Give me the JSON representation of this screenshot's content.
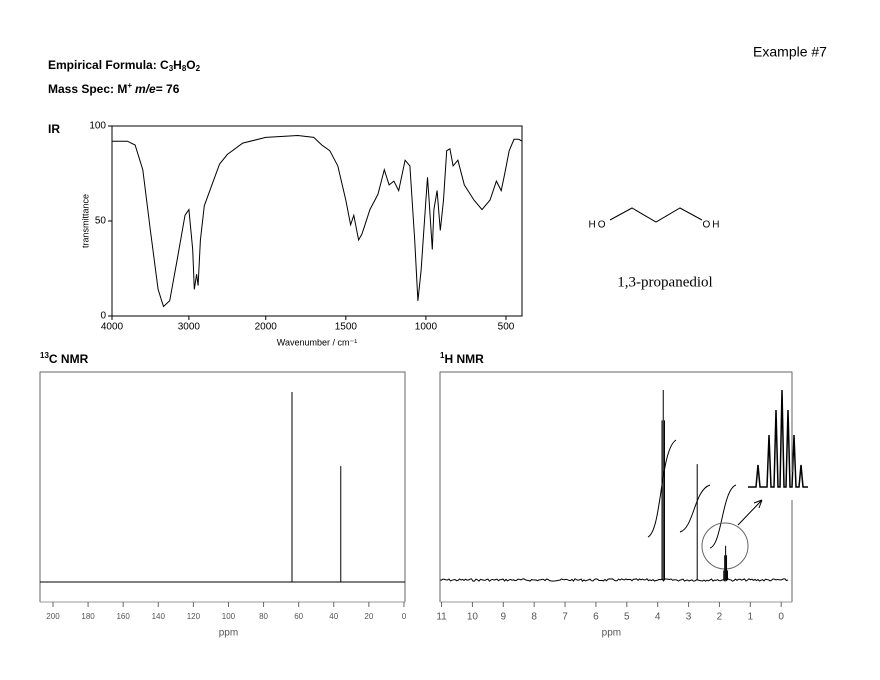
{
  "header": {
    "example": "Example #7",
    "formula_label": "Empirical Formula: ",
    "formula_parts": [
      {
        "text": "C",
        "sub": "3"
      },
      {
        "text": "H",
        "sub": "8"
      },
      {
        "text": "O",
        "sub": "2"
      }
    ],
    "mass_label": "Mass Spec: M",
    "mass_charge": "+",
    "mass_ratio": "m/e",
    "mass_equals": "= 76"
  },
  "molecule": {
    "left": "HO",
    "right": "OH",
    "name": "1,3-propanediol"
  },
  "chart_data": [
    {
      "type": "line",
      "label": "IR",
      "ylabel": "transmittance",
      "xlabel": "Wavenumber / cm⁻¹",
      "color": "#000000",
      "x": [
        4000,
        3800,
        3700,
        3600,
        3500,
        3400,
        3330,
        3250,
        3150,
        3050,
        3000,
        2950,
        2930,
        2900,
        2880,
        2850,
        2800,
        2700,
        2600,
        2500,
        2300,
        2000,
        1800,
        1700,
        1650,
        1600,
        1550,
        1500,
        1470,
        1450,
        1420,
        1400,
        1380,
        1350,
        1300,
        1260,
        1230,
        1200,
        1170,
        1130,
        1100,
        1070,
        1050,
        1030,
        1000,
        990,
        980,
        960,
        950,
        930,
        910,
        890,
        870,
        850,
        830,
        800,
        760,
        700,
        650,
        600,
        560,
        530,
        510,
        480,
        450,
        420,
        400
      ],
      "values": [
        92,
        92,
        90,
        77,
        45,
        14,
        5,
        8,
        30,
        53,
        56,
        35,
        14,
        22,
        16,
        40,
        58,
        69,
        80,
        85,
        91,
        94,
        95,
        94,
        90,
        87,
        79,
        61,
        48,
        53,
        40,
        43,
        48,
        56,
        64,
        77,
        69,
        71,
        66,
        82,
        79,
        40,
        8,
        24,
        61,
        73,
        61,
        35,
        56,
        66,
        45,
        61,
        87,
        88,
        79,
        82,
        69,
        61,
        56,
        61,
        71,
        66,
        74,
        87,
        93,
        93,
        92
      ],
      "xlim": [
        4000,
        400
      ],
      "xbreak": 2000,
      "xticks": [
        4000,
        3000,
        2000,
        1500,
        1000,
        500
      ],
      "ylim": [
        0,
        100
      ],
      "yticks": [
        0,
        50,
        100
      ]
    },
    {
      "type": "stem",
      "label_sup": "13",
      "label": "C NMR",
      "xlabel": "ppm",
      "color": "#000000",
      "x": [
        63.8,
        36.0
      ],
      "values": [
        100,
        61
      ],
      "xlim": [
        207.4,
        -0.6
      ],
      "xticks": [
        200,
        180,
        160,
        140,
        120,
        100,
        80,
        60,
        40,
        20,
        0
      ],
      "ylim": [
        0,
        100
      ]
    },
    {
      "type": "stem",
      "label_sup": "1",
      "label": "H NMR",
      "xlabel": "ppm",
      "color": "#000000",
      "x": [
        3.86,
        3.82,
        3.78,
        2.72,
        1.86,
        1.83,
        1.8,
        1.77,
        1.74
      ],
      "values": [
        84,
        100,
        84,
        61,
        5,
        13,
        18,
        13,
        5
      ],
      "xlim": [
        11.05,
        -0.35
      ],
      "xticks": [
        11,
        10,
        9,
        8,
        7,
        6,
        5,
        4,
        3,
        2,
        1,
        0
      ],
      "ylim": [
        0,
        100
      ]
    }
  ]
}
